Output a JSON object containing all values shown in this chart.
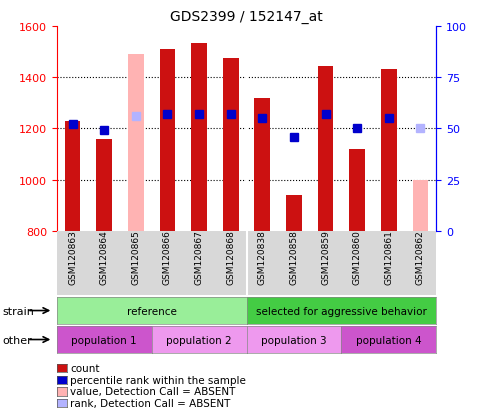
{
  "title": "GDS2399 / 152147_at",
  "samples": [
    "GSM120863",
    "GSM120864",
    "GSM120865",
    "GSM120866",
    "GSM120867",
    "GSM120868",
    "GSM120838",
    "GSM120858",
    "GSM120859",
    "GSM120860",
    "GSM120861",
    "GSM120862"
  ],
  "count_values": [
    1230,
    1160,
    null,
    1510,
    1535,
    1475,
    1320,
    940,
    1445,
    1120,
    1430,
    null
  ],
  "absent_count_values": [
    null,
    null,
    1490,
    null,
    null,
    null,
    null,
    null,
    null,
    null,
    null,
    1000
  ],
  "percentile_rank": [
    52,
    49,
    null,
    57,
    57,
    57,
    55,
    46,
    57,
    50,
    55,
    null
  ],
  "absent_rank": [
    null,
    null,
    56,
    null,
    null,
    null,
    null,
    null,
    null,
    null,
    null,
    50
  ],
  "ylim_left": [
    800,
    1600
  ],
  "ylim_right": [
    0,
    100
  ],
  "yticks_left": [
    800,
    1000,
    1200,
    1400,
    1600
  ],
  "yticks_right": [
    0,
    25,
    50,
    75,
    100
  ],
  "count_color": "#cc1111",
  "absent_count_color": "#ffb3b3",
  "rank_color": "#0000cc",
  "absent_rank_color": "#b3b3ff",
  "strain_groups": [
    {
      "label": "reference",
      "start": 0,
      "end": 5,
      "color": "#99ee99"
    },
    {
      "label": "selected for aggressive behavior",
      "start": 6,
      "end": 11,
      "color": "#44cc44"
    }
  ],
  "other_groups": [
    {
      "label": "population 1",
      "start": 0,
      "end": 2,
      "color": "#cc55cc"
    },
    {
      "label": "population 2",
      "start": 3,
      "end": 5,
      "color": "#ee99ee"
    },
    {
      "label": "population 3",
      "start": 6,
      "end": 8,
      "color": "#ee99ee"
    },
    {
      "label": "population 4",
      "start": 9,
      "end": 11,
      "color": "#cc55cc"
    }
  ],
  "legend_items": [
    {
      "label": "count",
      "color": "#cc1111"
    },
    {
      "label": "percentile rank within the sample",
      "color": "#0000cc"
    },
    {
      "label": "value, Detection Call = ABSENT",
      "color": "#ffb3b3"
    },
    {
      "label": "rank, Detection Call = ABSENT",
      "color": "#b3b3ff"
    }
  ]
}
